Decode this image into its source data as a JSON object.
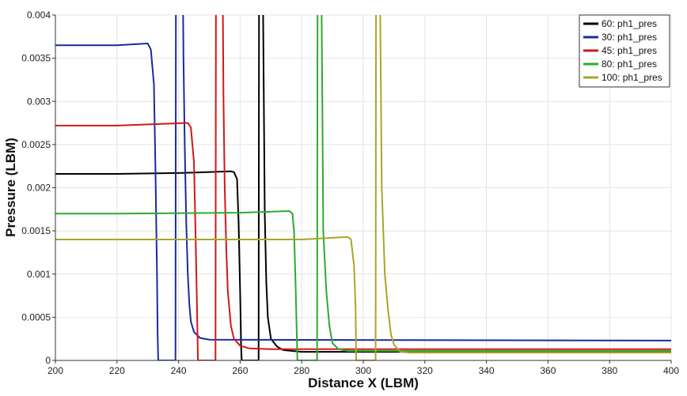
{
  "chart_data": {
    "type": "line",
    "title": "",
    "xlabel": "Distance X (LBM)",
    "ylabel": "Pressure (LBM)",
    "xlim": [
      200,
      400
    ],
    "ylim": [
      0,
      0.004
    ],
    "x_ticks": [
      "200",
      "220",
      "240",
      "260",
      "280",
      "300",
      "320",
      "340",
      "360",
      "380",
      "400"
    ],
    "y_ticks": [
      "0",
      "0.0005",
      "0.001",
      "0.0015",
      "0.002",
      "0.0025",
      "0.003",
      "0.0035",
      "0.004"
    ],
    "grid": true,
    "legend_position": "top-right",
    "series": [
      {
        "name": "60: ph1_pres",
        "color": "#000000",
        "points": [
          [
            200,
            0.00216
          ],
          [
            220,
            0.00216
          ],
          [
            240,
            0.00217
          ],
          [
            257,
            0.00219
          ],
          [
            258,
            0.00218
          ],
          [
            259,
            0.0021
          ],
          [
            259.5,
            0.0016
          ],
          [
            260,
            0.0008
          ],
          [
            260.3,
            0.0002
          ],
          [
            260.5,
            0.0
          ],
          [
            266,
            0.0
          ],
          [
            266.2,
            0.006
          ],
          [
            267,
            0.006
          ],
          [
            268,
            0.0017
          ],
          [
            268.5,
            0.0009
          ],
          [
            269,
            0.0005
          ],
          [
            270,
            0.00025
          ],
          [
            272,
            0.00016
          ],
          [
            274,
            0.00012
          ],
          [
            280,
            0.0001
          ],
          [
            400,
            0.0001
          ]
        ]
      },
      {
        "name": "30: ph1_pres",
        "color": "#1a2b9c",
        "points": [
          [
            200,
            0.00365
          ],
          [
            220,
            0.00365
          ],
          [
            230,
            0.00367
          ],
          [
            231,
            0.0036
          ],
          [
            232,
            0.0032
          ],
          [
            232.5,
            0.0022
          ],
          [
            233,
            0.001
          ],
          [
            233.2,
            0.0003
          ],
          [
            233.4,
            0.0
          ],
          [
            239,
            0.0
          ],
          [
            239.2,
            0.006
          ],
          [
            241,
            0.006
          ],
          [
            241.6,
            0.0035
          ],
          [
            242,
            0.0025
          ],
          [
            242.5,
            0.0016
          ],
          [
            243,
            0.001
          ],
          [
            243.5,
            0.00065
          ],
          [
            244,
            0.00045
          ],
          [
            245,
            0.00033
          ],
          [
            247,
            0.00026
          ],
          [
            250,
            0.00024
          ],
          [
            400,
            0.00023
          ]
        ]
      },
      {
        "name": "45: ph1_pres",
        "color": "#d01818",
        "points": [
          [
            200,
            0.00272
          ],
          [
            220,
            0.00272
          ],
          [
            243,
            0.00275
          ],
          [
            244,
            0.0027
          ],
          [
            245,
            0.0023
          ],
          [
            245.5,
            0.0015
          ],
          [
            246,
            0.0006
          ],
          [
            246.3,
            0.0
          ],
          [
            252,
            0.0
          ],
          [
            252.2,
            0.006
          ],
          [
            254,
            0.006
          ],
          [
            254.6,
            0.003
          ],
          [
            255,
            0.002
          ],
          [
            255.5,
            0.0013
          ],
          [
            256,
            0.0008
          ],
          [
            257,
            0.0004
          ],
          [
            258,
            0.00025
          ],
          [
            260,
            0.00017
          ],
          [
            263,
            0.00014
          ],
          [
            270,
            0.00013
          ],
          [
            400,
            0.00013
          ]
        ]
      },
      {
        "name": "80: ph1_pres",
        "color": "#2eaa2e",
        "points": [
          [
            200,
            0.0017
          ],
          [
            220,
            0.0017
          ],
          [
            260,
            0.00171
          ],
          [
            276,
            0.00173
          ],
          [
            277,
            0.0017
          ],
          [
            277.5,
            0.0015
          ],
          [
            278,
            0.0009
          ],
          [
            278.6,
            0.0
          ],
          [
            285,
            0.0
          ],
          [
            285.2,
            0.006
          ],
          [
            286,
            0.006
          ],
          [
            286.7,
            0.003
          ],
          [
            287,
            0.0015
          ],
          [
            288,
            0.0008
          ],
          [
            289,
            0.0004
          ],
          [
            290,
            0.0002
          ],
          [
            292,
            0.00013
          ],
          [
            295,
            0.00011
          ],
          [
            400,
            0.00011
          ]
        ]
      },
      {
        "name": "100: ph1_pres",
        "color": "#aaa52c",
        "points": [
          [
            200,
            0.0014
          ],
          [
            220,
            0.0014
          ],
          [
            280,
            0.0014
          ],
          [
            295,
            0.00143
          ],
          [
            296,
            0.0014
          ],
          [
            297,
            0.0011
          ],
          [
            297.5,
            0.0006
          ],
          [
            297.7,
            0.0
          ],
          [
            304,
            0.0
          ],
          [
            304.2,
            0.006
          ],
          [
            305,
            0.006
          ],
          [
            306,
            0.002
          ],
          [
            307,
            0.001
          ],
          [
            308,
            0.0006
          ],
          [
            309,
            0.0003
          ],
          [
            310,
            0.00018
          ],
          [
            312,
            0.0001
          ],
          [
            315,
            9e-05
          ],
          [
            400,
            9e-05
          ]
        ]
      }
    ]
  }
}
